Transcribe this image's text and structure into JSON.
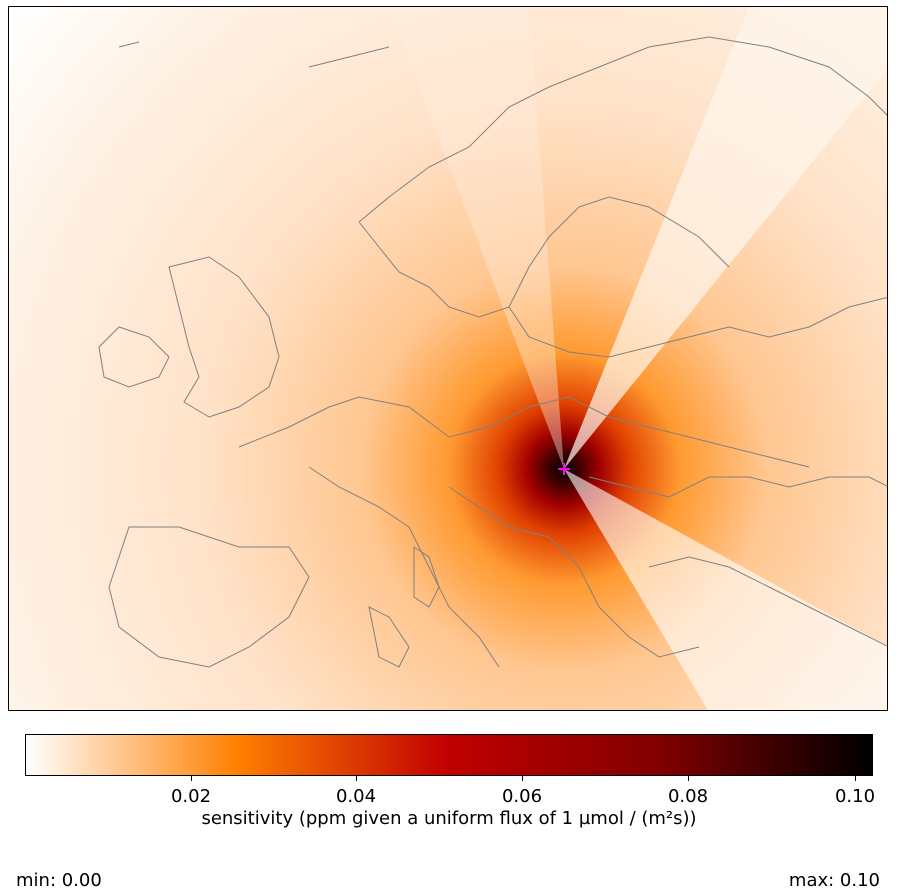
{
  "chart_data": {
    "type": "heatmap",
    "title": "",
    "colorbar": {
      "label": "sensitivity (ppm given a uniform flux of 1 µmol / (m²s))",
      "range": [
        0.0,
        0.102
      ],
      "ticks": [
        0.02,
        0.04,
        0.06,
        0.08,
        0.1
      ],
      "tick_labels": [
        "0.02",
        "0.04",
        "0.06",
        "0.08",
        "0.10"
      ],
      "colormap": "gist_heat_r",
      "colors": [
        "#ffffff",
        "#ff8000",
        "#c00000",
        "#800000",
        "#000000"
      ]
    },
    "receptor_marker_color": "#ff00ff",
    "coastline_color": "#808080"
  },
  "stats": {
    "min_label": "min: 0.00",
    "max_label": "max: 0.10"
  }
}
